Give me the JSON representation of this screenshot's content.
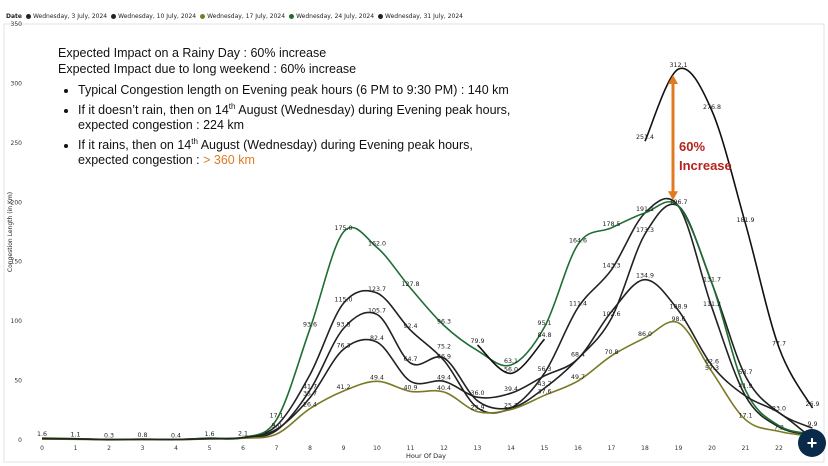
{
  "legend": {
    "title": "Date",
    "items": [
      {
        "label": "Wednesday, 3 July, 2024",
        "color": "#222222"
      },
      {
        "label": "Wednesday, 10 July, 2024",
        "color": "#222222"
      },
      {
        "label": "Wednesday, 17 July, 2024",
        "color": "#7a7a24"
      },
      {
        "label": "Wednesday, 24 July, 2024",
        "color": "#1e6e33"
      },
      {
        "label": "Wednesday, 31 July, 2024",
        "color": "#222222"
      }
    ]
  },
  "notes": {
    "line1": "Expected Impact on a Rainy Day : 60% increase",
    "line2": "Expected Impact due to long weekend : 60% increase",
    "bullet1": "Typical Congestion length on Evening peak hours (6 PM to 9:30 PM) : 140 km",
    "bullet2_pre": "If it doesn’t rain, then on 14",
    "bullet2_sup": "th",
    "bullet2_post": " August (Wednesday) during Evening peak hours, expected congestion : 224 km",
    "bullet3_pre": "If it rains, then on 14",
    "bullet3_sup": "th",
    "bullet3_mid": " August (Wednesday) during Evening peak hours, expected congestion : ",
    "bullet3_highlight": "> 360 km"
  },
  "annotation": {
    "line1": "60%",
    "line2": "Increase",
    "arrow_color": "#e07b21",
    "text_color": "#b5231c"
  },
  "fab_icon": "add-icon",
  "chart_data": {
    "type": "line",
    "xlabel": "Hour Of Day",
    "ylabel": "Congestion Length (in Km)",
    "x": [
      0,
      1,
      2,
      3,
      4,
      5,
      6,
      7,
      8,
      9,
      10,
      11,
      12,
      13,
      14,
      15,
      16,
      17,
      18,
      19,
      20,
      21,
      22,
      23
    ],
    "x_ticks": [
      "0",
      "1",
      "2",
      "3",
      "4",
      "5",
      "6",
      "7",
      "8",
      "9",
      "10",
      "11",
      "12",
      "13",
      "14",
      "15",
      "16",
      "17",
      "18",
      "19",
      "20",
      "21",
      "22"
    ],
    "ylim": [
      0,
      350
    ],
    "y_ticks": [
      "0",
      "50",
      "100",
      "150",
      "200",
      "250",
      "300",
      "350"
    ],
    "grid": false,
    "legend_position": "top-left",
    "series": [
      {
        "name": "Wednesday, 3 July, 2024",
        "color": "#222222",
        "values": [
          1.2,
          1.0,
          0.4,
          0.6,
          0.5,
          1.2,
          2.0,
          12,
          55,
          115.0,
          123.7,
          92.4,
          66.9,
          27,
          27,
          56.3,
          111.4,
          143.3,
          191.1,
          196.7,
          111.2,
          37,
          11,
          4
        ]
      },
      {
        "name": "Wednesday, 10 July, 2024",
        "color": "#222222",
        "values": [
          1.0,
          0.8,
          0.3,
          0.5,
          0.4,
          1.0,
          1.8,
          8,
          42,
          93.8,
          105.7,
          64.7,
          68.9,
          33,
          27,
          43.7,
          68.4,
          102.6,
          173.3,
          196.7,
          131.7,
          53.7,
          23.0,
          9.9
        ]
      },
      {
        "name": "Wednesday, 17 July, 2024",
        "color": "#7a7a24",
        "values": [
          0.8,
          0.6,
          0.2,
          0.4,
          0.3,
          0.8,
          1.5,
          5,
          26.4,
          41.2,
          49.4,
          40.9,
          40.4,
          23.9,
          25.7,
          37.6,
          49.7,
          70.8,
          86.0,
          98.6,
          57.3,
          17.1,
          7.2,
          3
        ]
      },
      {
        "name": "Wednesday, 24 July, 2024",
        "color": "#1e6e33",
        "values": [
          1.6,
          1.1,
          0.3,
          0.8,
          0.4,
          1.6,
          2.1,
          17.1,
          93.6,
          175.0,
          162.0,
          127.8,
          96.3,
          75.2,
          63.1,
          95.1,
          164.6,
          178.5,
          191.1,
          196.7,
          131.7,
          41.9,
          12,
          5
        ]
      },
      {
        "name": "Wednesday, 31 July, 2024",
        "color": "#222222",
        "values": [
          1.2,
          0.9,
          0.3,
          0.6,
          0.4,
          1.2,
          2.0,
          9,
          35.7,
          76.3,
          82.4,
          49.4,
          49.4,
          36.0,
          39.4,
          54,
          68.4,
          108,
          134.9,
          108.9,
          62.6,
          37,
          23.0,
          1
        ]
      },
      {
        "name": "",
        "color": "#111111",
        "values": [
          null,
          null,
          null,
          null,
          null,
          null,
          null,
          null,
          null,
          null,
          null,
          null,
          null,
          79.9,
          56.0,
          84.8,
          null,
          null,
          251.4,
          312.1,
          276.8,
          181.9,
          77.7,
          26.9
        ]
      }
    ],
    "data_labels": [
      {
        "x": 0,
        "y": 1.6,
        "t": "1.6"
      },
      {
        "x": 1,
        "y": 1.1,
        "t": "1.1"
      },
      {
        "x": 2,
        "y": 0.3,
        "t": "0.3"
      },
      {
        "x": 3,
        "y": 0.8,
        "t": "0.8"
      },
      {
        "x": 4,
        "y": 0.4,
        "t": "0.4"
      },
      {
        "x": 5,
        "y": 1.6,
        "t": "1.6"
      },
      {
        "x": 6,
        "y": 2.1,
        "t": "2.1"
      },
      {
        "x": 7,
        "y": 17.1,
        "t": "17.1"
      },
      {
        "x": 7,
        "y": 9,
        "t": "9.0"
      },
      {
        "x": 8,
        "y": 93.6,
        "t": "93.6"
      },
      {
        "x": 8,
        "y": 41.7,
        "t": "41.7"
      },
      {
        "x": 8,
        "y": 35.7,
        "t": "35.7"
      },
      {
        "x": 8,
        "y": 26.4,
        "t": "26.4"
      },
      {
        "x": 9,
        "y": 175.0,
        "t": "175.0"
      },
      {
        "x": 9,
        "y": 115.0,
        "t": "115.0"
      },
      {
        "x": 9,
        "y": 93.8,
        "t": "93.8"
      },
      {
        "x": 9,
        "y": 76.3,
        "t": "76.3"
      },
      {
        "x": 9,
        "y": 41.2,
        "t": "41.2"
      },
      {
        "x": 10,
        "y": 162.0,
        "t": "162.0"
      },
      {
        "x": 10,
        "y": 123.7,
        "t": "123.7"
      },
      {
        "x": 10,
        "y": 105.7,
        "t": "105.7"
      },
      {
        "x": 10,
        "y": 82.4,
        "t": "82.4"
      },
      {
        "x": 10,
        "y": 49.4,
        "t": "49.4"
      },
      {
        "x": 11,
        "y": 127.8,
        "t": "127.8"
      },
      {
        "x": 11,
        "y": 92.4,
        "t": "92.4"
      },
      {
        "x": 11,
        "y": 64.7,
        "t": "64.7"
      },
      {
        "x": 11,
        "y": 40.9,
        "t": "40.9"
      },
      {
        "x": 12,
        "y": 96.3,
        "t": "96.3"
      },
      {
        "x": 12,
        "y": 75.2,
        "t": "75.2"
      },
      {
        "x": 12,
        "y": 66.9,
        "t": "66.9"
      },
      {
        "x": 12,
        "y": 49.4,
        "t": "49.4"
      },
      {
        "x": 12,
        "y": 40.4,
        "t": "40.4"
      },
      {
        "x": 13,
        "y": 79.9,
        "t": "79.9"
      },
      {
        "x": 13,
        "y": 36.0,
        "t": "36.0"
      },
      {
        "x": 13,
        "y": 23.9,
        "t": "23.9"
      },
      {
        "x": 14,
        "y": 63.1,
        "t": "63.1"
      },
      {
        "x": 14,
        "y": 56.0,
        "t": "56.0"
      },
      {
        "x": 14,
        "y": 39.4,
        "t": "39.4"
      },
      {
        "x": 14,
        "y": 25.7,
        "t": "25.7"
      },
      {
        "x": 15,
        "y": 95.1,
        "t": "95.1"
      },
      {
        "x": 15,
        "y": 84.8,
        "t": "84.8"
      },
      {
        "x": 15,
        "y": 56.3,
        "t": "56.3"
      },
      {
        "x": 15,
        "y": 43.7,
        "t": "43.7"
      },
      {
        "x": 15,
        "y": 37.6,
        "t": "37.6"
      },
      {
        "x": 16,
        "y": 164.6,
        "t": "164.6"
      },
      {
        "x": 16,
        "y": 111.4,
        "t": "111.4"
      },
      {
        "x": 16,
        "y": 68.4,
        "t": "68.4"
      },
      {
        "x": 16,
        "y": 49.7,
        "t": "49.7"
      },
      {
        "x": 17,
        "y": 178.5,
        "t": "178.5"
      },
      {
        "x": 17,
        "y": 143.3,
        "t": "143.3"
      },
      {
        "x": 17,
        "y": 102.6,
        "t": "102.6"
      },
      {
        "x": 17,
        "y": 70.8,
        "t": "70.8"
      },
      {
        "x": 18,
        "y": 251.4,
        "t": "251.4"
      },
      {
        "x": 18,
        "y": 191.1,
        "t": "191.1"
      },
      {
        "x": 18,
        "y": 173.3,
        "t": "173.3"
      },
      {
        "x": 18,
        "y": 134.9,
        "t": "134.9"
      },
      {
        "x": 18,
        "y": 86.0,
        "t": "86.0"
      },
      {
        "x": 19,
        "y": 312.1,
        "t": "312.1"
      },
      {
        "x": 19,
        "y": 196.7,
        "t": "196.7"
      },
      {
        "x": 19,
        "y": 108.9,
        "t": "108.9"
      },
      {
        "x": 19,
        "y": 98.6,
        "t": "98.6"
      },
      {
        "x": 20,
        "y": 276.8,
        "t": "276.8"
      },
      {
        "x": 20,
        "y": 131.7,
        "t": "131.7"
      },
      {
        "x": 20,
        "y": 111.2,
        "t": "111.2"
      },
      {
        "x": 20,
        "y": 62.6,
        "t": "62.6"
      },
      {
        "x": 20,
        "y": 57.3,
        "t": "57.3"
      },
      {
        "x": 21,
        "y": 181.9,
        "t": "181.9"
      },
      {
        "x": 21,
        "y": 53.7,
        "t": "53.7"
      },
      {
        "x": 21,
        "y": 41.9,
        "t": "41.9"
      },
      {
        "x": 21,
        "y": 17.1,
        "t": "17.1"
      },
      {
        "x": 22,
        "y": 77.7,
        "t": "77.7"
      },
      {
        "x": 22,
        "y": 23.0,
        "t": "23.0"
      },
      {
        "x": 22,
        "y": 7.2,
        "t": "7.2"
      },
      {
        "x": 23,
        "y": 26.9,
        "t": "26.9"
      },
      {
        "x": 23,
        "y": 9.9,
        "t": "9.9"
      }
    ]
  }
}
